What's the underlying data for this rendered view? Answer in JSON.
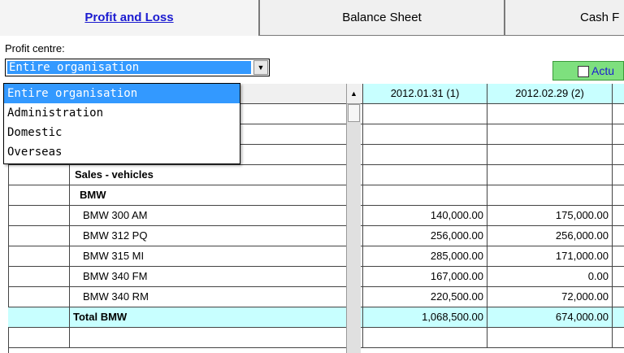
{
  "tabs": [
    {
      "label": "Profit and Loss",
      "active": true
    },
    {
      "label": "Balance Sheet",
      "active": false
    },
    {
      "label": "Cash F",
      "active": false
    }
  ],
  "profit_centre": {
    "label": "Profit centre:",
    "selected": "Entire organisation",
    "options": [
      "Entire organisation",
      "Administration",
      "Domestic",
      "Overseas"
    ]
  },
  "actual_toggle": {
    "label": "Actu",
    "checked": false
  },
  "grid": {
    "columns": [
      "2012.01.31 (1)",
      "2012.02.29 (2)"
    ],
    "rows": [
      {
        "label": "",
        "v1": "",
        "v2": "",
        "style": "plain"
      },
      {
        "label": "",
        "v1": "",
        "v2": "",
        "style": "plain"
      },
      {
        "label": "",
        "v1": "",
        "v2": "",
        "style": "plain"
      },
      {
        "label": "Sales - vehicles",
        "v1": "",
        "v2": "",
        "style": "bold"
      },
      {
        "label": "BMW",
        "v1": "",
        "v2": "",
        "style": "bold-indent"
      },
      {
        "label": "BMW 300 AM",
        "v1": "140,000.00",
        "v2": "175,000.00",
        "style": "item"
      },
      {
        "label": "BMW 312 PQ",
        "v1": "256,000.00",
        "v2": "256,000.00",
        "style": "item"
      },
      {
        "label": "BMW 315 MI",
        "v1": "285,000.00",
        "v2": "171,000.00",
        "style": "item"
      },
      {
        "label": "BMW 340 FM",
        "v1": "167,000.00",
        "v2": "0.00",
        "style": "item"
      },
      {
        "label": "BMW 340 RM",
        "v1": "220,500.00",
        "v2": "72,000.00",
        "style": "item"
      },
      {
        "label": "Total BMW",
        "v1": "1,068,500.00",
        "v2": "674,000.00",
        "style": "total"
      },
      {
        "label": "",
        "v1": "",
        "v2": "",
        "style": "plain"
      }
    ]
  },
  "colors": {
    "accent": "#1b1bd0",
    "selection": "#3399ff",
    "total_bg": "#c8ffff",
    "actual_bg": "#7ee07e"
  }
}
